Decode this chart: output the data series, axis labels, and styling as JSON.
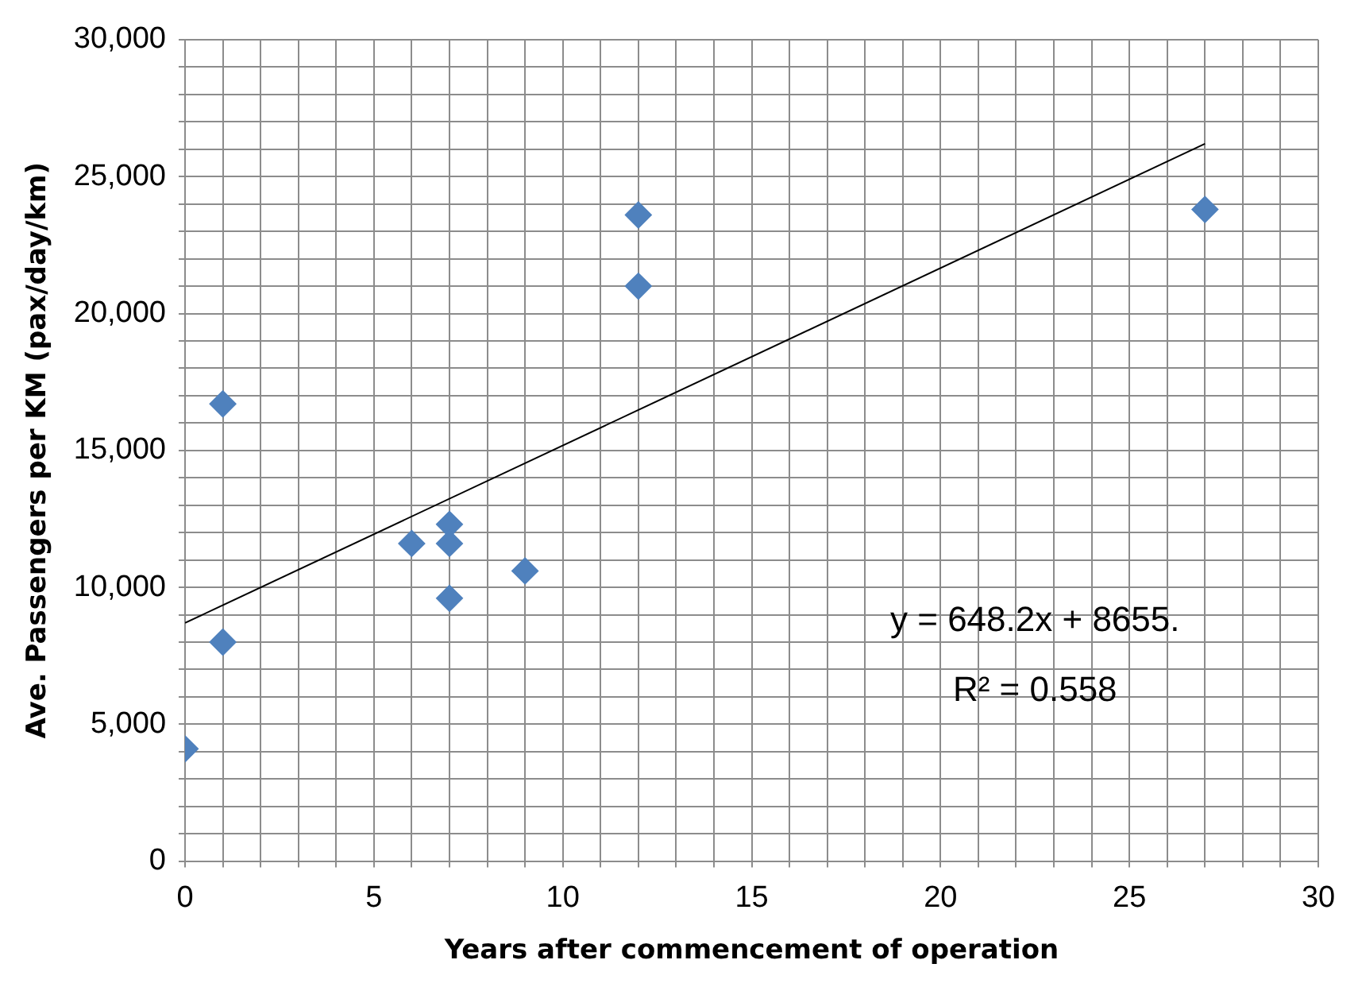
{
  "chart_data": {
    "type": "scatter",
    "xlabel": "Years after commencement of operation",
    "ylabel": "Ave. Passengers per KM (pax/day/km)",
    "series": [
      {
        "color": "#4f81bd",
        "marker": "diamond",
        "x": [
          0,
          1,
          1,
          6,
          7,
          7,
          7,
          9,
          12,
          12,
          27
        ],
        "values": [
          4100,
          8000,
          16700,
          11600,
          12300,
          11600,
          9600,
          10600,
          23600,
          21000,
          23800
        ]
      },
      {
        "type": "line",
        "color": "#000000",
        "marker": "none",
        "x": [
          0,
          27
        ],
        "values": [
          8700,
          26200
        ]
      }
    ],
    "xlim": [
      0,
      30
    ],
    "xticks": [
      0,
      {
        "value": 1,
        "label": null
      },
      {
        "value": 2,
        "label": null
      },
      {
        "value": 3,
        "label": null
      },
      {
        "value": 4,
        "label": null
      },
      5,
      {
        "value": 6,
        "label": null
      },
      {
        "value": 7,
        "label": null
      },
      {
        "value": 8,
        "label": null
      },
      {
        "value": 9,
        "label": null
      },
      10,
      {
        "value": 11,
        "label": null
      },
      {
        "value": 12,
        "label": null
      },
      {
        "value": 13,
        "label": null
      },
      {
        "value": 14,
        "label": null
      },
      15,
      {
        "value": 16,
        "label": null
      },
      {
        "value": 17,
        "label": null
      },
      {
        "value": 18,
        "label": null
      },
      {
        "value": 19,
        "label": null
      },
      20,
      {
        "value": 21,
        "label": null
      },
      {
        "value": 22,
        "label": null
      },
      {
        "value": 23,
        "label": null
      },
      {
        "value": 24,
        "label": null
      },
      25,
      {
        "value": 26,
        "label": null
      },
      {
        "value": 27,
        "label": null
      },
      {
        "value": 28,
        "label": null
      },
      {
        "value": 29,
        "label": null
      },
      30
    ],
    "ylim": [
      0,
      30000
    ],
    "yticks": [
      0,
      {
        "value": 1000,
        "label": null
      },
      {
        "value": 2000,
        "label": null
      },
      {
        "value": 3000,
        "label": null
      },
      {
        "value": 4000,
        "label": null
      },
      {
        "value": 5000,
        "label": "5,000"
      },
      {
        "value": 6000,
        "label": null
      },
      {
        "value": 7000,
        "label": null
      },
      {
        "value": 8000,
        "label": null
      },
      {
        "value": 9000,
        "label": null
      },
      {
        "value": 10000,
        "label": "10,000"
      },
      {
        "value": 11000,
        "label": null
      },
      {
        "value": 12000,
        "label": null
      },
      {
        "value": 13000,
        "label": null
      },
      {
        "value": 14000,
        "label": null
      },
      {
        "value": 15000,
        "label": "15,000"
      },
      {
        "value": 16000,
        "label": null
      },
      {
        "value": 17000,
        "label": null
      },
      {
        "value": 18000,
        "label": null
      },
      {
        "value": 19000,
        "label": null
      },
      {
        "value": 20000,
        "label": "20,000"
      },
      {
        "value": 21000,
        "label": null
      },
      {
        "value": 22000,
        "label": null
      },
      {
        "value": 23000,
        "label": null
      },
      {
        "value": 24000,
        "label": null
      },
      {
        "value": 25000,
        "label": "25,000"
      },
      {
        "value": 26000,
        "label": null
      },
      {
        "value": 27000,
        "label": null
      },
      {
        "value": 28000,
        "label": null
      },
      {
        "value": 29000,
        "label": null
      },
      {
        "value": 30000,
        "label": "30,000"
      }
    ],
    "grid": true,
    "legend": false,
    "annotations": [
      "y = 648.2x + 8655.",
      "R² = 0.558"
    ]
  }
}
